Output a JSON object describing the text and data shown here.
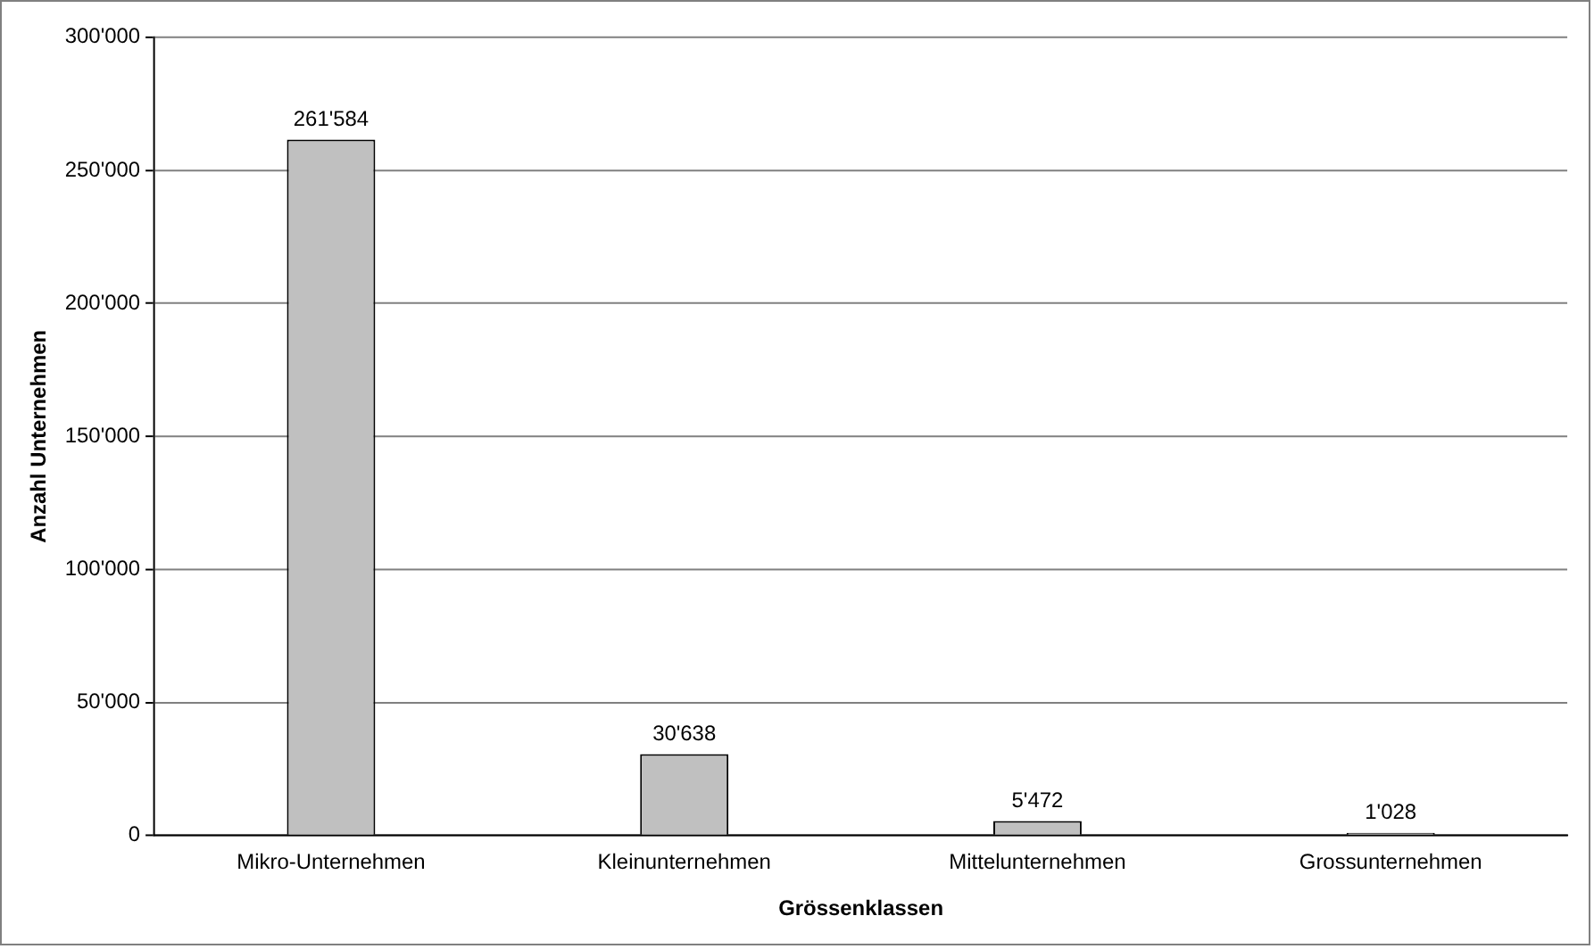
{
  "chart_data": {
    "type": "bar",
    "xlabel": "Grössenklassen",
    "ylabel": "Anzahl Unternehmen",
    "categories": [
      "Mikro-Unternehmen",
      "Kleinunternehmen",
      "Mittelunternehmen",
      "Grossunternehmen"
    ],
    "values": [
      261584,
      30638,
      5472,
      1028
    ],
    "value_labels": [
      "261'584",
      "30'638",
      "5'472",
      "1'028"
    ],
    "color": "#c0c0c0",
    "ylim": [
      0,
      300000
    ],
    "yticks": [
      {
        "value": 0,
        "label": "0"
      },
      {
        "value": 50000,
        "label": "50'000"
      },
      {
        "value": 100000,
        "label": "100'000"
      },
      {
        "value": 150000,
        "label": "150'000"
      },
      {
        "value": 200000,
        "label": "200'000"
      },
      {
        "value": 250000,
        "label": "250'000"
      },
      {
        "value": 300000,
        "label": "300'000"
      }
    ],
    "grid": "y",
    "legend": false
  }
}
